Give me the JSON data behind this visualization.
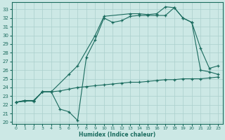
{
  "xlabel": "Humidex (Indice chaleur)",
  "xlim": [
    -0.5,
    23.5
  ],
  "ylim": [
    19.8,
    33.8
  ],
  "xticks": [
    0,
    1,
    2,
    3,
    4,
    5,
    6,
    7,
    8,
    9,
    10,
    11,
    12,
    13,
    14,
    15,
    16,
    17,
    18,
    19,
    20,
    21,
    22,
    23
  ],
  "yticks": [
    20,
    21,
    22,
    23,
    24,
    25,
    26,
    27,
    28,
    29,
    30,
    31,
    32,
    33
  ],
  "bg_color": "#cce8e5",
  "line_color": "#1a6b5e",
  "grid_color": "#aacfcc",
  "line1_x": [
    0,
    1,
    2,
    3,
    4,
    5,
    6,
    7,
    8,
    9,
    10,
    11,
    12,
    13,
    14,
    15,
    16,
    17,
    18,
    19,
    20,
    21,
    22,
    23
  ],
  "line1_y": [
    22.3,
    22.5,
    22.4,
    23.5,
    23.5,
    21.5,
    21.2,
    20.2,
    27.5,
    29.5,
    32.0,
    31.5,
    31.7,
    32.2,
    32.3,
    32.3,
    32.3,
    32.3,
    33.2,
    32.0,
    31.5,
    28.5,
    26.2,
    26.5
  ],
  "line2_x": [
    0,
    2,
    3,
    4,
    6,
    7,
    9,
    10,
    13,
    14,
    15,
    16,
    17,
    18,
    19,
    20,
    21,
    22,
    23
  ],
  "line2_y": [
    22.3,
    22.5,
    23.5,
    23.5,
    25.5,
    26.5,
    30.0,
    32.2,
    32.5,
    32.5,
    32.4,
    32.5,
    33.3,
    33.2,
    32.0,
    31.5,
    26.0,
    25.8,
    25.5
  ],
  "line3_x": [
    0,
    1,
    2,
    3,
    4,
    5,
    6,
    7,
    8,
    9,
    10,
    11,
    12,
    13,
    14,
    15,
    16,
    17,
    18,
    19,
    20,
    21,
    22,
    23
  ],
  "line3_y": [
    22.3,
    22.5,
    22.5,
    23.5,
    23.5,
    23.6,
    23.8,
    24.0,
    24.1,
    24.2,
    24.3,
    24.4,
    24.5,
    24.6,
    24.6,
    24.7,
    24.8,
    24.9,
    24.9,
    25.0,
    25.0,
    25.0,
    25.1,
    25.2
  ]
}
